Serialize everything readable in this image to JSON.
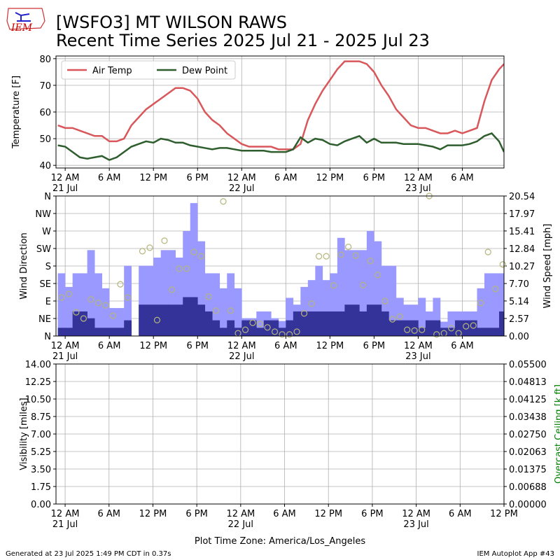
{
  "logo": "IEM",
  "footer": {
    "left": "Generated at 23 Jul 2025 1:49 PM CDT in 0.37s",
    "right": "IEM Autoplot App #43"
  },
  "chart_data": [
    {
      "type": "line",
      "title": "[WSFO3] MT WILSON RAWS",
      "subtitle": "Recent Time Series 2025 Jul 21 - 2025 Jul 23",
      "ylabel": "Temperature [F]",
      "legend": "upper left",
      "grid": true,
      "xlim": [
        "2025-07-20T22:45",
        "2025-07-23T11:40"
      ],
      "xticks": [
        {
          "value": "2025-07-21T00:00",
          "label": "12 AM\n21 Jul"
        },
        {
          "value": "2025-07-21T06:00",
          "label": "6 AM"
        },
        {
          "value": "2025-07-21T12:00",
          "label": "12 PM"
        },
        {
          "value": "2025-07-21T18:00",
          "label": "6 PM"
        },
        {
          "value": "2025-07-22T00:00",
          "label": "12 AM\n22 Jul"
        },
        {
          "value": "2025-07-22T06:00",
          "label": "6 AM"
        },
        {
          "value": "2025-07-22T12:00",
          "label": "12 PM"
        },
        {
          "value": "2025-07-22T18:00",
          "label": "6 PM"
        },
        {
          "value": "2025-07-23T00:00",
          "label": "12 AM\n23 Jul"
        },
        {
          "value": "2025-07-23T06:00",
          "label": "6 AM"
        }
      ],
      "ylim": [
        39,
        81
      ],
      "yticks": [
        40,
        50,
        60,
        70,
        80
      ],
      "x": [
        "2025-07-20T23:00",
        "2025-07-21T00:00",
        "2025-07-21T01:00",
        "2025-07-21T02:00",
        "2025-07-21T03:00",
        "2025-07-21T04:00",
        "2025-07-21T05:00",
        "2025-07-21T06:00",
        "2025-07-21T07:00",
        "2025-07-21T08:00",
        "2025-07-21T09:00",
        "2025-07-21T10:00",
        "2025-07-21T11:00",
        "2025-07-21T12:00",
        "2025-07-21T13:00",
        "2025-07-21T14:00",
        "2025-07-21T15:00",
        "2025-07-21T16:00",
        "2025-07-21T17:00",
        "2025-07-21T18:00",
        "2025-07-21T19:00",
        "2025-07-21T20:00",
        "2025-07-21T21:00",
        "2025-07-21T22:00",
        "2025-07-21T23:00",
        "2025-07-22T00:00",
        "2025-07-22T01:00",
        "2025-07-22T02:00",
        "2025-07-22T03:00",
        "2025-07-22T04:00",
        "2025-07-22T05:00",
        "2025-07-22T06:00",
        "2025-07-22T07:00",
        "2025-07-22T08:00",
        "2025-07-22T09:00",
        "2025-07-22T10:00",
        "2025-07-22T11:00",
        "2025-07-22T12:00",
        "2025-07-22T13:00",
        "2025-07-22T14:00",
        "2025-07-22T15:00",
        "2025-07-22T16:00",
        "2025-07-22T17:00",
        "2025-07-22T18:00",
        "2025-07-22T19:00",
        "2025-07-22T20:00",
        "2025-07-22T21:00",
        "2025-07-22T22:00",
        "2025-07-22T23:00",
        "2025-07-23T00:00",
        "2025-07-23T01:00",
        "2025-07-23T02:00",
        "2025-07-23T03:00",
        "2025-07-23T04:00",
        "2025-07-23T05:00",
        "2025-07-23T06:00",
        "2025-07-23T07:00",
        "2025-07-23T08:00",
        "2025-07-23T09:00",
        "2025-07-23T10:00",
        "2025-07-23T11:00",
        "2025-07-23T11:40"
      ],
      "series": [
        {
          "name": "Air Temp",
          "color": "#d9575a",
          "values": [
            55,
            54,
            54,
            53,
            52,
            51,
            51,
            49,
            49,
            50,
            55,
            58,
            61,
            63,
            65,
            67,
            69,
            69,
            68,
            65,
            60,
            57,
            55,
            52,
            50,
            48,
            47,
            47,
            47,
            47,
            46,
            46,
            46,
            48,
            57,
            63,
            68,
            72,
            76,
            79,
            79,
            79,
            78,
            75,
            70,
            66,
            61,
            58,
            55,
            54,
            54,
            53,
            52,
            52,
            53,
            52,
            53,
            54,
            64,
            72,
            76,
            78
          ]
        },
        {
          "name": "Dew Point",
          "color": "#2e5e2e",
          "values": [
            47.5,
            47,
            45,
            43,
            42.5,
            43,
            43.5,
            42,
            43,
            45,
            47,
            48,
            49,
            48.5,
            50,
            49.5,
            48.5,
            48.5,
            47.5,
            47,
            46.5,
            46,
            46.5,
            46.5,
            46,
            45.5,
            45.5,
            45.5,
            45.5,
            45,
            45,
            45,
            46,
            50.5,
            48.5,
            50,
            49.5,
            48,
            47.5,
            49,
            50,
            51,
            48.5,
            50,
            48.5,
            48.5,
            48.5,
            48,
            48,
            48,
            47.5,
            47,
            46,
            47.5,
            47.5,
            47.5,
            48,
            49,
            51,
            52,
            49,
            45
          ]
        }
      ]
    },
    {
      "type": "bar",
      "ylabel": "Wind Direction",
      "y2label": "Wind Speed [mph]",
      "grid": true,
      "xlim": [
        "2025-07-20T22:45",
        "2025-07-23T11:40"
      ],
      "xticks": [
        {
          "value": "2025-07-21T00:00",
          "label": "12 AM\n21 Jul"
        },
        {
          "value": "2025-07-21T06:00",
          "label": "6 AM"
        },
        {
          "value": "2025-07-21T12:00",
          "label": "12 PM"
        },
        {
          "value": "2025-07-21T18:00",
          "label": "6 PM"
        },
        {
          "value": "2025-07-22T00:00",
          "label": "12 AM\n22 Jul"
        },
        {
          "value": "2025-07-22T06:00",
          "label": "6 AM"
        },
        {
          "value": "2025-07-22T12:00",
          "label": "12 PM"
        },
        {
          "value": "2025-07-22T18:00",
          "label": "6 PM"
        },
        {
          "value": "2025-07-23T00:00",
          "label": "12 AM\n23 Jul"
        },
        {
          "value": "2025-07-23T06:00",
          "label": "6 AM"
        }
      ],
      "ylim": [
        0,
        360
      ],
      "yticks": [
        {
          "value": 0,
          "label": "N"
        },
        {
          "value": 45,
          "label": "NE"
        },
        {
          "value": 90,
          "label": "E"
        },
        {
          "value": 135,
          "label": "SE"
        },
        {
          "value": 180,
          "label": "S"
        },
        {
          "value": 225,
          "label": "SW"
        },
        {
          "value": 270,
          "label": "W"
        },
        {
          "value": 315,
          "label": "NW"
        },
        {
          "value": 360,
          "label": "N"
        }
      ],
      "y2lim": [
        0,
        20.54
      ],
      "y2ticks": [
        {
          "value": 0,
          "label": "0.00"
        },
        2.57,
        5.14,
        {
          "value": 7.7,
          "label": "7.70"
        },
        10.27,
        12.84,
        15.41,
        17.97,
        20.54
      ],
      "x": [
        "2025-07-20T23:00",
        "2025-07-21T00:00",
        "2025-07-21T01:00",
        "2025-07-21T02:00",
        "2025-07-21T03:00",
        "2025-07-21T04:00",
        "2025-07-21T05:00",
        "2025-07-21T06:00",
        "2025-07-21T07:00",
        "2025-07-21T08:00",
        "2025-07-21T09:00",
        "2025-07-21T10:00",
        "2025-07-21T11:00",
        "2025-07-21T12:00",
        "2025-07-21T13:00",
        "2025-07-21T14:00",
        "2025-07-21T15:00",
        "2025-07-21T16:00",
        "2025-07-21T17:00",
        "2025-07-21T18:00",
        "2025-07-21T19:00",
        "2025-07-21T20:00",
        "2025-07-21T21:00",
        "2025-07-21T22:00",
        "2025-07-21T23:00",
        "2025-07-22T00:00",
        "2025-07-22T01:00",
        "2025-07-22T02:00",
        "2025-07-22T03:00",
        "2025-07-22T04:00",
        "2025-07-22T05:00",
        "2025-07-22T06:00",
        "2025-07-22T07:00",
        "2025-07-22T08:00",
        "2025-07-22T09:00",
        "2025-07-22T10:00",
        "2025-07-22T11:00",
        "2025-07-22T12:00",
        "2025-07-22T13:00",
        "2025-07-22T14:00",
        "2025-07-22T15:00",
        "2025-07-22T16:00",
        "2025-07-22T17:00",
        "2025-07-22T18:00",
        "2025-07-22T19:00",
        "2025-07-22T20:00",
        "2025-07-22T21:00",
        "2025-07-22T22:00",
        "2025-07-22T23:00",
        "2025-07-23T00:00",
        "2025-07-23T01:00",
        "2025-07-23T02:00",
        "2025-07-23T03:00",
        "2025-07-23T04:00",
        "2025-07-23T05:00",
        "2025-07-23T06:00",
        "2025-07-23T07:00",
        "2025-07-23T08:00",
        "2025-07-23T09:00",
        "2025-07-23T10:00",
        "2025-07-23T11:00"
      ],
      "series": [
        {
          "type": "bar",
          "axis": "y2",
          "color": "#9999ff",
          "values": [
            9.2,
            7.2,
            9.2,
            9.2,
            12.6,
            9.2,
            7.0,
            4.1,
            4.1,
            10.3,
            null,
            10.3,
            10.3,
            11.5,
            12.6,
            12.6,
            11.5,
            15.4,
            19.5,
            13.9,
            9.2,
            9.2,
            7.0,
            9.2,
            7.0,
            2.6,
            2.6,
            3.6,
            3.6,
            2.6,
            2.2,
            5.6,
            4.6,
            7.2,
            8.2,
            10.3,
            8.2,
            9.2,
            14.4,
            12.6,
            12.6,
            12.6,
            15.4,
            13.9,
            10.3,
            10.3,
            5.6,
            4.6,
            4.6,
            5.6,
            3.6,
            5.6,
            2.1,
            3.6,
            3.6,
            3.6,
            3.6,
            7.0,
            9.2,
            9.2,
            9.2
          ]
        },
        {
          "type": "bar",
          "axis": "y2",
          "color": "#333399",
          "values": [
            1.2,
            1.2,
            3.6,
            3.6,
            2.6,
            1.2,
            1.2,
            1.2,
            1.2,
            2.3,
            null,
            4.6,
            4.6,
            4.6,
            4.6,
            4.6,
            4.6,
            5.7,
            5.7,
            4.6,
            3.6,
            2.3,
            1.2,
            2.3,
            1.2,
            2.3,
            2.3,
            1.2,
            2.3,
            2.3,
            1.2,
            2.3,
            3.6,
            3.6,
            3.6,
            3.6,
            3.6,
            3.6,
            3.6,
            4.6,
            4.6,
            3.6,
            4.6,
            4.6,
            3.6,
            2.3,
            2.3,
            2.3,
            2.3,
            1.2,
            2.3,
            2.3,
            1.2,
            1.2,
            2.3,
            2.3,
            2.3,
            1.2,
            1.2,
            1.2,
            3.6
          ]
        },
        {
          "type": "scatter",
          "axis": "y",
          "color": "#b5b57a",
          "values": [
            99,
            108,
            61,
            45,
            94,
            85,
            79,
            52,
            133,
            99,
            null,
            218,
            227,
            41,
            245,
            119,
            173,
            173,
            216,
            205,
            101,
            65,
            346,
            65,
            7,
            16,
            34,
            31,
            22,
            11,
            4,
            4,
            11,
            58,
            83,
            205,
            205,
            130,
            209,
            229,
            207,
            131,
            193,
            157,
            90,
            43,
            50,
            16,
            14,
            16,
            360,
            4,
            7,
            20,
            7,
            25,
            27,
            85,
            216,
            121,
            184
          ]
        }
      ]
    },
    {
      "type": "line",
      "ylabel": "Visibility [miles]",
      "y2label": "Overcast Ceiling [k ft]",
      "y2label_color": "#008000",
      "grid": true,
      "xlabel": "Plot Time Zone: America/Los_Angeles",
      "xlim": [
        "2025-07-20T22:45",
        "2025-07-23T12:00"
      ],
      "xticks": [
        {
          "value": "2025-07-21T00:00",
          "label": "12 AM\n21 Jul"
        },
        {
          "value": "2025-07-21T06:00",
          "label": "6 AM"
        },
        {
          "value": "2025-07-21T12:00",
          "label": "12 PM"
        },
        {
          "value": "2025-07-21T18:00",
          "label": "6 PM"
        },
        {
          "value": "2025-07-22T00:00",
          "label": "12 AM\n22 Jul"
        },
        {
          "value": "2025-07-22T06:00",
          "label": "6 AM"
        },
        {
          "value": "2025-07-22T12:00",
          "label": "12 PM"
        },
        {
          "value": "2025-07-22T18:00",
          "label": "6 PM"
        },
        {
          "value": "2025-07-23T00:00",
          "label": "12 AM\n23 Jul"
        },
        {
          "value": "2025-07-23T06:00",
          "label": "6 AM"
        },
        {
          "value": "2025-07-23T12:00",
          "label": "12 PM"
        }
      ],
      "ylim": [
        0,
        14
      ],
      "yticks": [
        {
          "value": 0,
          "label": "0.00"
        },
        1.75,
        {
          "value": 3.5,
          "label": "3.50"
        },
        5.25,
        {
          "value": 7,
          "label": "7.00"
        },
        8.75,
        {
          "value": 10.5,
          "label": "10.50"
        },
        12.25,
        {
          "value": 14,
          "label": "14.00"
        }
      ],
      "y2lim": [
        0,
        0.055
      ],
      "y2ticks": [
        {
          "value": 0,
          "label": "0.00000"
        },
        {
          "value": 0.006875,
          "label": "0.00688"
        },
        {
          "value": 0.01375,
          "label": "0.01375"
        },
        {
          "value": 0.020625,
          "label": "0.02063"
        },
        {
          "value": 0.0275,
          "label": "0.02750"
        },
        {
          "value": 0.034375,
          "label": "0.03438"
        },
        {
          "value": 0.04125,
          "label": "0.04125"
        },
        {
          "value": 0.048125,
          "label": "0.04813"
        },
        {
          "value": 0.055,
          "label": "0.05500"
        }
      ],
      "series": []
    }
  ]
}
